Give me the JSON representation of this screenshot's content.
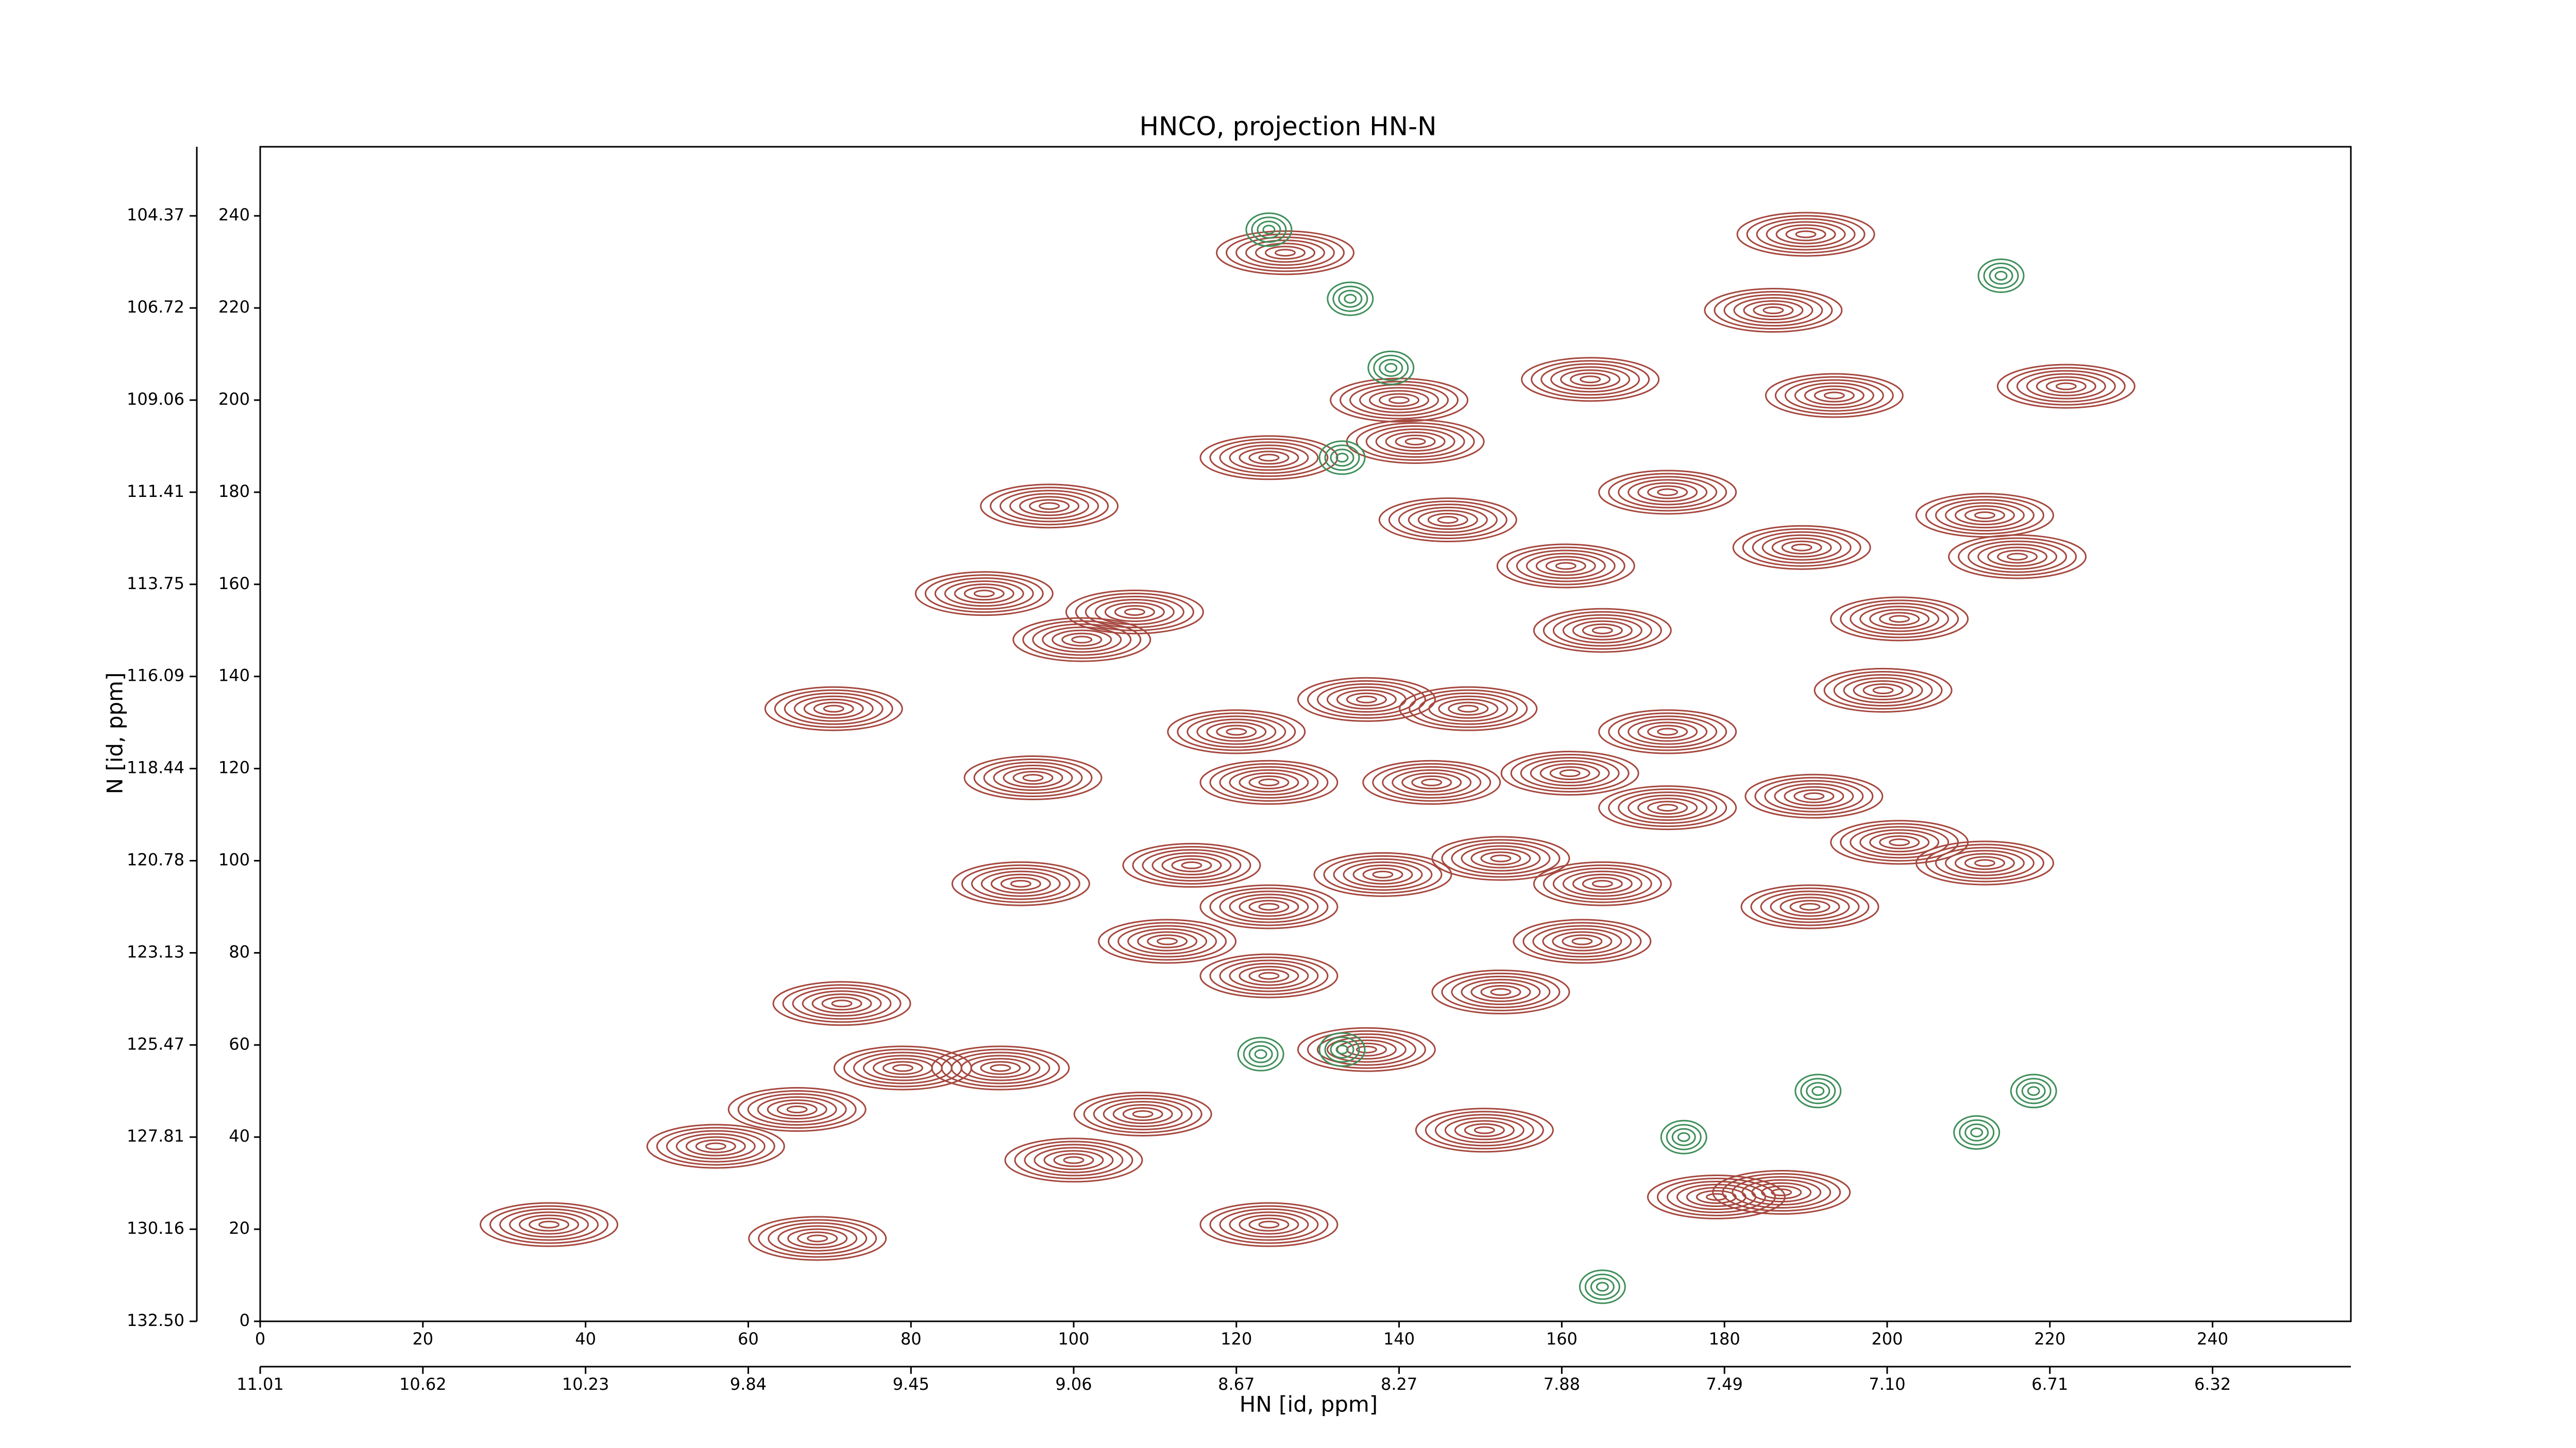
{
  "chart_data": {
    "type": "contour",
    "title": "HNCO, projection HN-N",
    "xlabel": "HN [id, ppm]",
    "ylabel": "N [id, ppm]",
    "xlim": [
      0,
      257
    ],
    "ylim": [
      0,
      255
    ],
    "xticks": [
      0,
      20,
      40,
      60,
      80,
      100,
      120,
      140,
      160,
      180,
      200,
      220,
      240
    ],
    "yticks": [
      0,
      20,
      40,
      60,
      80,
      100,
      120,
      140,
      160,
      180,
      200,
      220,
      240
    ],
    "x2ticks": [
      {
        "value": 0,
        "label": "11.01"
      },
      {
        "value": 20,
        "label": "10.62"
      },
      {
        "value": 40,
        "label": "10.23"
      },
      {
        "value": 60,
        "label": "9.84"
      },
      {
        "value": 80,
        "label": "9.45"
      },
      {
        "value": 100,
        "label": "9.06"
      },
      {
        "value": 120,
        "label": "8.67"
      },
      {
        "value": 140,
        "label": "8.27"
      },
      {
        "value": 160,
        "label": "7.88"
      },
      {
        "value": 180,
        "label": "7.49"
      },
      {
        "value": 200,
        "label": "7.10"
      },
      {
        "value": 220,
        "label": "6.71"
      },
      {
        "value": 240,
        "label": "6.32"
      }
    ],
    "y2ticks": [
      {
        "value": 0,
        "label": "132.50"
      },
      {
        "value": 20,
        "label": "130.16"
      },
      {
        "value": 40,
        "label": "127.81"
      },
      {
        "value": 60,
        "label": "125.47"
      },
      {
        "value": 80,
        "label": "123.13"
      },
      {
        "value": 100,
        "label": "120.78"
      },
      {
        "value": 120,
        "label": "118.44"
      },
      {
        "value": 140,
        "label": "116.09"
      },
      {
        "value": 160,
        "label": "113.75"
      },
      {
        "value": 180,
        "label": "111.41"
      },
      {
        "value": 200,
        "label": "109.06"
      },
      {
        "value": 220,
        "label": "106.72"
      },
      {
        "value": 240,
        "label": "104.37"
      }
    ],
    "series": [
      {
        "color": "#a5483f",
        "x": [
          70.5,
          97,
          89,
          95,
          93.5,
          71.5,
          79,
          91,
          66,
          56,
          68.5,
          35.5,
          100,
          108.5,
          111.5,
          107.5,
          101,
          124,
          126,
          140,
          142,
          146,
          163.5,
          186,
          190,
          193.5,
          173,
          212,
          216,
          160.5,
          189.5,
          201.5,
          199.5,
          165,
          148.5,
          120,
          124,
          136,
          161,
          173,
          191,
          201.5,
          212,
          190.5,
          165,
          152.5,
          138,
          124,
          162.5,
          152.5,
          136,
          124,
          150.5,
          124,
          179,
          187,
          222,
          114.5,
          144,
          173
        ],
        "values": [
          133,
          177,
          158,
          118,
          95,
          69,
          55,
          55,
          46,
          38,
          18,
          21,
          35,
          45,
          82.5,
          154,
          148,
          187.5,
          232,
          200,
          191,
          174,
          204.5,
          219.5,
          236,
          201,
          180,
          175,
          166,
          164,
          168,
          152.5,
          137,
          150,
          133,
          128,
          117,
          135,
          119,
          111.5,
          114,
          104,
          99.5,
          90,
          95,
          100.5,
          97,
          90,
          82.5,
          71.5,
          59,
          75,
          41.5,
          21,
          27,
          28,
          203,
          99,
          117,
          128
        ]
      },
      {
        "color": "#3f8f5a",
        "x": [
          134,
          124,
          139,
          133,
          133,
          175,
          191.5,
          218,
          211,
          214,
          123,
          165
        ],
        "values": [
          222,
          237,
          207,
          187.5,
          59,
          40,
          50,
          50,
          41,
          227,
          58,
          7.5
        ]
      }
    ]
  }
}
